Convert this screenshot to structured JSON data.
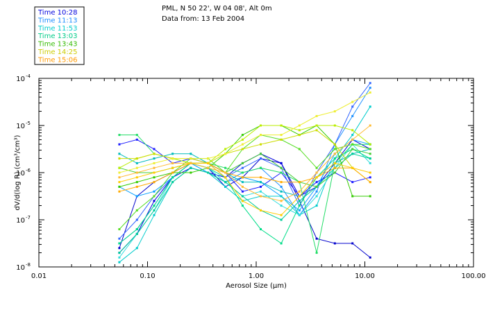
{
  "header": {
    "line1": "PML, N 50 22', W 04 08', Alt 0m",
    "line2": "Data from: 13 Feb 2004"
  },
  "chart_data": {
    "type": "line",
    "title": "PML, N 50 22', W 04 08', Alt 0m",
    "subtitle": "Data from: 13 Feb 2004",
    "xscale": "log",
    "yscale": "log",
    "xlim": [
      0.01,
      100
    ],
    "ylim": [
      1e-08,
      0.0001
    ],
    "xlabel": "Aerosol Size (μm)",
    "ylabel": "dV/d(log R) (cm³/cm³)",
    "x_ticks": [
      {
        "value": 0.01,
        "label": "0.01"
      },
      {
        "value": 0.1,
        "label": "0.10"
      },
      {
        "value": 1,
        "label": "1.00"
      },
      {
        "value": 10,
        "label": "10.00"
      },
      {
        "value": 100,
        "label": "100.00"
      }
    ],
    "y_ticks": [
      {
        "value": 1e-08,
        "mant": "10",
        "exp": "-8"
      },
      {
        "value": 1e-07,
        "mant": "10",
        "exp": "-7"
      },
      {
        "value": 1e-06,
        "mant": "10",
        "exp": "-6"
      },
      {
        "value": 1e-05,
        "mant": "10",
        "exp": "-5"
      },
      {
        "value": 0.0001,
        "mant": "10",
        "exp": "-4"
      }
    ],
    "x": [
      0.055,
      0.08,
      0.115,
      0.17,
      0.25,
      0.36,
      0.52,
      0.75,
      1.1,
      1.7,
      2.5,
      3.6,
      5.3,
      7.7,
      11.2
    ],
    "series": [
      {
        "name": "Time 10:28",
        "color": "#0000cc",
        "y_log10": [
          -7.6,
          -6.5,
          -6.2,
          -6.0,
          -5.8,
          -5.9,
          -6.3,
          -6.1,
          -5.7,
          -5.8,
          -6.6,
          -7.4,
          -7.5,
          -7.5,
          -7.8
        ]
      },
      {
        "name": "Time 10:28",
        "color": "#0000dd",
        "y_log10": [
          -7.7,
          -7.3,
          -6.6,
          -6.1,
          -5.9,
          -6.0,
          -6.1,
          -5.8,
          -5.6,
          -5.8,
          -6.5,
          -6.3,
          -5.8,
          -5.3,
          -5.5
        ]
      },
      {
        "name": "Time 10:28",
        "color": "#1a1aff",
        "y_log10": [
          -5.4,
          -5.3,
          -5.5,
          -5.8,
          -5.7,
          -5.8,
          -6.0,
          -6.4,
          -6.3,
          -6.0,
          -6.5,
          -6.2,
          -6.0,
          -6.2,
          -6.1
        ]
      },
      {
        "name": "Time 11:13",
        "color": "#1e90ff",
        "y_log10": [
          -7.5,
          -7.2,
          -6.7,
          -6.1,
          -5.8,
          -5.9,
          -6.2,
          -6.0,
          -5.9,
          -6.3,
          -6.9,
          -6.4,
          -5.4,
          -4.8,
          -4.2
        ]
      },
      {
        "name": "Time 11:13",
        "color": "#0aa0ff",
        "y_log10": [
          -6.3,
          -6.5,
          -6.4,
          -6.1,
          -5.8,
          -6.0,
          -6.2,
          -6.1,
          -6.2,
          -6.5,
          -6.8,
          -6.3,
          -5.6,
          -5.3,
          -5.4
        ]
      },
      {
        "name": "Time 11:13",
        "color": "#3366ff",
        "y_log10": [
          -7.4,
          -7.0,
          -6.5,
          -6.1,
          -5.8,
          -5.8,
          -6.1,
          -5.9,
          -5.7,
          -5.9,
          -6.7,
          -6.0,
          -5.4,
          -4.6,
          -4.1
        ]
      },
      {
        "name": "Time 11:53",
        "color": "#00cccc",
        "y_log10": [
          -7.9,
          -7.6,
          -6.9,
          -6.2,
          -5.9,
          -6.0,
          -6.3,
          -6.6,
          -6.5,
          -6.5,
          -6.9,
          -6.7,
          -5.7,
          -5.2,
          -4.6
        ]
      },
      {
        "name": "Time 11:53",
        "color": "#33dddd",
        "y_log10": [
          -7.8,
          -7.3,
          -6.8,
          -6.1,
          -5.8,
          -5.9,
          -6.2,
          -6.5,
          -6.4,
          -6.7,
          -6.9,
          -6.5,
          -5.9,
          -5.4,
          -5.8
        ]
      },
      {
        "name": "Time 11:53",
        "color": "#00bbbb",
        "y_log10": [
          -5.6,
          -5.8,
          -5.7,
          -5.6,
          -5.6,
          -5.8,
          -6.0,
          -6.2,
          -6.2,
          -6.4,
          -6.5,
          -6.1,
          -5.8,
          -5.6,
          -5.5
        ]
      },
      {
        "name": "Time 13:03",
        "color": "#00dd88",
        "y_log10": [
          -7.5,
          -7.2,
          -6.7,
          -6.1,
          -5.8,
          -5.9,
          -6.1,
          -6.7,
          -7.2,
          -7.5,
          -6.7,
          -6.1,
          -5.7,
          -5.5,
          -5.7
        ]
      },
      {
        "name": "Time 13:03",
        "color": "#22dd66",
        "y_log10": [
          -5.2,
          -5.2,
          -5.6,
          -5.7,
          -5.8,
          -5.8,
          -5.9,
          -6.0,
          -5.9,
          -6.0,
          -6.2,
          -7.7,
          -5.8,
          -5.4,
          -5.4
        ]
      },
      {
        "name": "Time 13:03",
        "color": "#00cc99",
        "y_log10": [
          -7.7,
          -7.3,
          -6.8,
          -6.2,
          -5.9,
          -6.0,
          -6.2,
          -6.5,
          -6.8,
          -7.0,
          -6.6,
          -6.3,
          -5.9,
          -5.6,
          -5.7
        ]
      },
      {
        "name": "Time 13:43",
        "color": "#33cc00",
        "y_log10": [
          -6.3,
          -6.2,
          -6.1,
          -6.0,
          -6.0,
          -5.9,
          -5.6,
          -5.2,
          -5.0,
          -5.0,
          -5.2,
          -5.0,
          -5.4,
          -6.5,
          -6.5
        ]
      },
      {
        "name": "Time 13:43",
        "color": "#55dd22",
        "y_log10": [
          -7.2,
          -6.8,
          -6.5,
          -6.0,
          -5.7,
          -5.7,
          -6.0,
          -5.5,
          -5.2,
          -5.3,
          -5.5,
          -5.9,
          -5.5,
          -5.4,
          -5.5
        ]
      },
      {
        "name": "Time 13:43",
        "color": "#44cc33",
        "y_log10": [
          -5.9,
          -6.0,
          -6.0,
          -5.9,
          -5.8,
          -5.9,
          -6.0,
          -5.8,
          -5.6,
          -5.9,
          -6.2,
          -6.3,
          -6.0,
          -5.5,
          -5.6
        ]
      },
      {
        "name": "Time 14:25",
        "color": "#bbee00",
        "y_log10": [
          -5.9,
          -5.7,
          -5.6,
          -5.7,
          -5.8,
          -5.8,
          -5.5,
          -5.3,
          -5.0,
          -5.0,
          -5.1,
          -5.0,
          -5.0,
          -5.1,
          -5.4
        ]
      },
      {
        "name": "Time 14:25",
        "color": "#ccdd00",
        "y_log10": [
          -5.7,
          -5.7,
          -5.6,
          -5.7,
          -5.7,
          -5.8,
          -5.6,
          -5.5,
          -5.4,
          -5.3,
          -5.2,
          -5.1,
          -5.4,
          -5.9,
          -6.2
        ]
      },
      {
        "name": "Time 14:25",
        "color": "#eeee33",
        "y_log10": [
          -6.0,
          -5.9,
          -5.8,
          -5.7,
          -5.7,
          -5.7,
          -5.6,
          -5.4,
          -5.2,
          -5.2,
          -5.0,
          -4.8,
          -4.7,
          -4.5,
          -4.3
        ]
      },
      {
        "name": "Time 15:06",
        "color": "#ffaa00",
        "y_log10": [
          -6.4,
          -6.3,
          -6.2,
          -6.0,
          -5.8,
          -5.8,
          -6.0,
          -6.1,
          -6.1,
          -6.2,
          -6.2,
          -6.1,
          -5.9,
          -5.9,
          -6.2
        ]
      },
      {
        "name": "Time 15:06",
        "color": "#ffcc00",
        "y_log10": [
          -6.2,
          -6.1,
          -6.0,
          -5.9,
          -5.8,
          -5.8,
          -6.1,
          -6.6,
          -6.8,
          -6.9,
          -6.5,
          -6.1,
          -5.8,
          -5.9,
          -6.0
        ]
      },
      {
        "name": "Time 15:06",
        "color": "#ffbb33",
        "y_log10": [
          -6.1,
          -6.0,
          -5.9,
          -5.8,
          -5.8,
          -5.9,
          -6.0,
          -6.3,
          -6.5,
          -6.6,
          -6.4,
          -6.0,
          -5.6,
          -5.3,
          -5.0
        ]
      }
    ],
    "legend": {
      "placement": "top-left",
      "entries": [
        {
          "label": "Time 10:28",
          "color": "#0000dd"
        },
        {
          "label": "Time 11:13",
          "color": "#1a8cff"
        },
        {
          "label": "Time 11:53",
          "color": "#00cccc"
        },
        {
          "label": "Time 13:03",
          "color": "#00cc88"
        },
        {
          "label": "Time 13:43",
          "color": "#33bb00"
        },
        {
          "label": "Time 14:25",
          "color": "#cccc00"
        },
        {
          "label": "Time 15:06",
          "color": "#ff9900"
        }
      ]
    }
  }
}
